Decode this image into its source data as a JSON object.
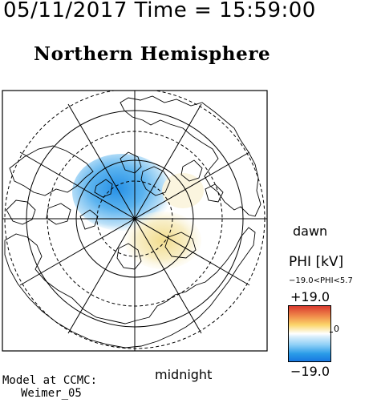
{
  "header": {
    "date_time": "05/11/2017 Time = 15:59:00",
    "hemisphere": "Northern Hemisphere"
  },
  "plot": {
    "projection": "polar stereographic, north pole centered",
    "midnight_label": "midnight",
    "dawn_label": "dawn",
    "potential_field": {
      "description": "convection potential pattern over the polar cap",
      "negative_cell_color": "#3b9fe8",
      "positive_cell_color": "#f5e6a6"
    }
  },
  "legend": {
    "title": "PHI [kV]",
    "range_text": "−19.0<PHI<5.7",
    "max_label": "+19.0",
    "min_label": "−19.0",
    "zero_label": "0",
    "colors": [
      "#d93a2f",
      "#f08a4a",
      "#fbd56a",
      "#ffffff",
      "#8fd0f6",
      "#2b9de8",
      "#1777e0"
    ]
  },
  "footer": {
    "model_line1": "Model at CCMC:",
    "model_line2": "Weimer_05"
  }
}
